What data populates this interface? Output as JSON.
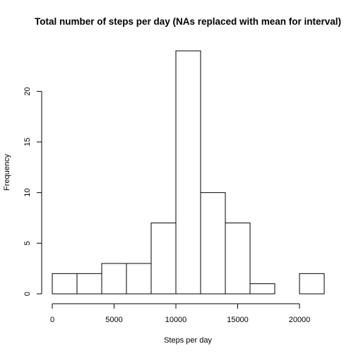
{
  "chart_data": {
    "type": "bar",
    "title": "Total number of steps per day (NAs replaced with mean for interval)",
    "xlabel": "Steps per day",
    "ylabel": "Frequency",
    "bins": [
      {
        "start": 0,
        "end": 2000,
        "count": 2
      },
      {
        "start": 2000,
        "end": 4000,
        "count": 2
      },
      {
        "start": 4000,
        "end": 6000,
        "count": 3
      },
      {
        "start": 6000,
        "end": 8000,
        "count": 3
      },
      {
        "start": 8000,
        "end": 10000,
        "count": 7
      },
      {
        "start": 10000,
        "end": 12000,
        "count": 24
      },
      {
        "start": 12000,
        "end": 14000,
        "count": 10
      },
      {
        "start": 14000,
        "end": 16000,
        "count": 7
      },
      {
        "start": 16000,
        "end": 18000,
        "count": 1
      },
      {
        "start": 18000,
        "end": 20000,
        "count": 0
      },
      {
        "start": 20000,
        "end": 22000,
        "count": 2
      }
    ],
    "xlim": [
      0,
      22000
    ],
    "ylim": [
      0,
      24
    ],
    "xticks": [
      0,
      5000,
      10000,
      15000,
      20000
    ],
    "yticks": [
      0,
      5,
      10,
      15,
      20
    ],
    "grid": false,
    "legend": "none"
  }
}
